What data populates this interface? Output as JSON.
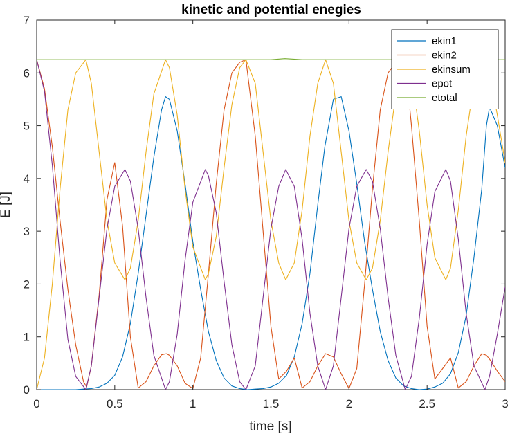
{
  "chart_data": {
    "type": "line",
    "title": "kinetic and potential enegies",
    "xlabel": "time [s]",
    "ylabel": "E [J]",
    "xlim": [
      0,
      3
    ],
    "ylim": [
      0,
      7
    ],
    "xticks": [
      0,
      0.5,
      1,
      1.5,
      2,
      2.5,
      3
    ],
    "yticks": [
      0,
      1,
      2,
      3,
      4,
      5,
      6,
      7
    ],
    "xtick_labels": [
      "0",
      "0.5",
      "1",
      "1.5",
      "2",
      "2.5",
      "3"
    ],
    "ytick_labels": [
      "0",
      "1",
      "2",
      "3",
      "4",
      "5",
      "6",
      "7"
    ],
    "grid": false,
    "legend_position": "top-right",
    "series": [
      {
        "name": "ekin1",
        "color": "#0072BD",
        "x": [
          0,
          0.05,
          0.1,
          0.15,
          0.2,
          0.25,
          0.3,
          0.35,
          0.4,
          0.45,
          0.5,
          0.55,
          0.6,
          0.65,
          0.7,
          0.75,
          0.8,
          0.825,
          0.85,
          0.9,
          0.95,
          1.0,
          1.05,
          1.1,
          1.15,
          1.2,
          1.25,
          1.3,
          1.35,
          1.4,
          1.45,
          1.5,
          1.55,
          1.6,
          1.65,
          1.7,
          1.75,
          1.8,
          1.845,
          1.9,
          1.95,
          2.0,
          2.05,
          2.1,
          2.15,
          2.2,
          2.25,
          2.3,
          2.35,
          2.4,
          2.45,
          2.5,
          2.55,
          2.6,
          2.65,
          2.7,
          2.75,
          2.8,
          2.85,
          2.88,
          2.9,
          2.95,
          3.0
        ],
        "y": [
          0,
          0,
          0,
          0,
          0,
          0,
          0.01,
          0.02,
          0.05,
          0.12,
          0.27,
          0.62,
          1.25,
          2.2,
          3.3,
          4.4,
          5.3,
          5.55,
          5.5,
          4.9,
          3.9,
          2.8,
          1.9,
          1.1,
          0.55,
          0.22,
          0.07,
          0.02,
          0,
          0.01,
          0.02,
          0.05,
          0.12,
          0.27,
          0.62,
          1.25,
          2.2,
          3.5,
          4.6,
          5.5,
          5.55,
          4.9,
          3.9,
          2.8,
          1.9,
          1.1,
          0.55,
          0.22,
          0.07,
          0.02,
          0,
          0.01,
          0.05,
          0.12,
          0.3,
          0.7,
          1.4,
          2.5,
          3.8,
          5.0,
          5.35,
          5.0,
          4.2
        ]
      },
      {
        "name": "ekin2",
        "color": "#D95319",
        "x": [
          0,
          0.05,
          0.1,
          0.15,
          0.2,
          0.25,
          0.3,
          0.32,
          0.35,
          0.4,
          0.45,
          0.5,
          0.55,
          0.6,
          0.65,
          0.7,
          0.75,
          0.8,
          0.83,
          0.85,
          0.9,
          0.95,
          1.0,
          1.05,
          1.1,
          1.15,
          1.2,
          1.25,
          1.3,
          1.34,
          1.4,
          1.45,
          1.5,
          1.55,
          1.6,
          1.65,
          1.7,
          1.75,
          1.8,
          1.85,
          1.9,
          1.95,
          2.0,
          2.05,
          2.1,
          2.15,
          2.2,
          2.25,
          2.3,
          2.36,
          2.4,
          2.45,
          2.5,
          2.55,
          2.6,
          2.65,
          2.7,
          2.75,
          2.8,
          2.85,
          2.88,
          2.9,
          2.95,
          3.0
        ],
        "y": [
          6.25,
          5.7,
          4.6,
          3.2,
          1.9,
          0.85,
          0.15,
          0.05,
          0.45,
          1.8,
          3.6,
          4.3,
          3.1,
          1.0,
          0.03,
          0.15,
          0.45,
          0.66,
          0.68,
          0.65,
          0.45,
          0.12,
          0.02,
          0.6,
          2.2,
          3.9,
          5.3,
          6.0,
          6.2,
          6.25,
          4.8,
          3.0,
          1.2,
          0.2,
          0.35,
          0.6,
          0.03,
          0.15,
          0.45,
          0.68,
          0.62,
          0.3,
          0.02,
          0.4,
          2.0,
          3.8,
          5.3,
          6.0,
          6.2,
          6.25,
          5.0,
          3.2,
          1.2,
          0.2,
          0.4,
          0.6,
          0.03,
          0.15,
          0.45,
          0.68,
          0.65,
          0.58,
          0.35,
          0.15
        ]
      },
      {
        "name": "ekinsum",
        "color": "#EDB120",
        "x": [
          0,
          0.05,
          0.1,
          0.15,
          0.2,
          0.25,
          0.315,
          0.35,
          0.4,
          0.45,
          0.5,
          0.565,
          0.6,
          0.65,
          0.7,
          0.75,
          0.825,
          0.85,
          0.9,
          0.95,
          1.0,
          1.08,
          1.1,
          1.15,
          1.2,
          1.25,
          1.3,
          1.34,
          1.4,
          1.45,
          1.5,
          1.55,
          1.595,
          1.65,
          1.7,
          1.75,
          1.8,
          1.85,
          1.9,
          1.95,
          2.0,
          2.05,
          2.11,
          2.15,
          2.2,
          2.25,
          2.3,
          2.36,
          2.4,
          2.45,
          2.5,
          2.55,
          2.62,
          2.65,
          2.7,
          2.75,
          2.8,
          2.87,
          2.9,
          2.95,
          3.0
        ],
        "y": [
          0,
          0.6,
          2.0,
          3.8,
          5.3,
          6.0,
          6.25,
          5.8,
          4.5,
          3.2,
          2.4,
          2.08,
          2.3,
          3.2,
          4.5,
          5.6,
          6.25,
          6.1,
          5.2,
          3.8,
          2.7,
          2.08,
          2.2,
          2.9,
          4.2,
          5.4,
          6.1,
          6.25,
          5.8,
          4.5,
          3.2,
          2.4,
          2.08,
          2.4,
          3.4,
          4.8,
          5.8,
          6.25,
          5.8,
          4.5,
          3.2,
          2.4,
          2.08,
          2.3,
          3.2,
          4.5,
          5.6,
          6.25,
          6.0,
          4.9,
          3.5,
          2.5,
          2.08,
          2.3,
          3.4,
          4.8,
          5.8,
          6.25,
          6.0,
          5.2,
          4.3
        ]
      },
      {
        "name": "epot",
        "color": "#7E2F8E",
        "x": [
          0,
          0.05,
          0.1,
          0.15,
          0.2,
          0.25,
          0.315,
          0.35,
          0.4,
          0.45,
          0.5,
          0.565,
          0.6,
          0.65,
          0.7,
          0.75,
          0.825,
          0.85,
          0.9,
          0.95,
          1.0,
          1.08,
          1.1,
          1.15,
          1.2,
          1.25,
          1.3,
          1.34,
          1.4,
          1.45,
          1.5,
          1.55,
          1.595,
          1.65,
          1.7,
          1.75,
          1.8,
          1.85,
          1.9,
          1.95,
          2.0,
          2.05,
          2.11,
          2.15,
          2.2,
          2.25,
          2.3,
          2.36,
          2.4,
          2.45,
          2.5,
          2.55,
          2.62,
          2.65,
          2.7,
          2.75,
          2.8,
          2.87,
          2.9,
          2.95,
          3.0
        ],
        "y": [
          6.25,
          5.65,
          4.25,
          2.45,
          0.95,
          0.25,
          0,
          0.45,
          1.75,
          3.05,
          3.85,
          4.17,
          3.95,
          3.05,
          1.75,
          0.65,
          0,
          0.15,
          1.05,
          2.45,
          3.55,
          4.17,
          4.05,
          3.35,
          2.05,
          0.85,
          0.15,
          0,
          0.45,
          1.75,
          3.05,
          3.85,
          4.17,
          3.85,
          2.85,
          1.45,
          0.45,
          0,
          0.45,
          1.75,
          3.05,
          3.85,
          4.17,
          3.95,
          3.05,
          1.75,
          0.65,
          0,
          0.25,
          1.35,
          2.75,
          3.75,
          4.17,
          3.95,
          2.85,
          1.45,
          0.45,
          0,
          0.25,
          1.05,
          1.95
        ]
      },
      {
        "name": "etotal",
        "color": "#77AC30",
        "x": [
          0,
          0.5,
          1.0,
          1.5,
          1.59,
          1.7,
          2.0,
          2.5,
          3.0
        ],
        "y": [
          6.25,
          6.25,
          6.25,
          6.25,
          6.27,
          6.25,
          6.25,
          6.25,
          6.25
        ]
      }
    ]
  }
}
